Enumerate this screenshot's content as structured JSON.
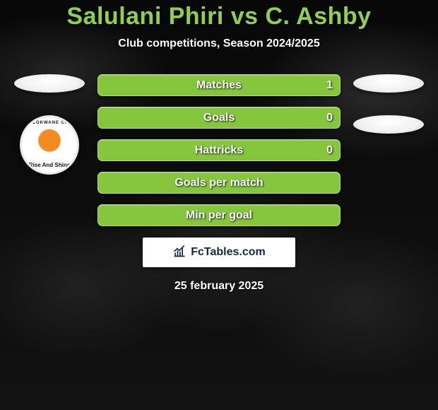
{
  "title": {
    "text": "Salulani Phiri vs C. Ashby",
    "fontsize": 34,
    "color": "#8fd14a"
  },
  "subtitle": {
    "text": "Club competitions, Season 2024/2025",
    "fontsize": 16
  },
  "left": {
    "club_top": "POLOKWANE   CITY",
    "club_motto": "Rise And Shine"
  },
  "bars": {
    "label_fontsize": 16,
    "value_fontsize": 16,
    "border_color": "#b6e06a",
    "rows": [
      {
        "label": "Matches",
        "left": "",
        "right": "1",
        "fill_left": "#85c63e",
        "fill_right": "#85c63e"
      },
      {
        "label": "Goals",
        "left": "",
        "right": "0",
        "fill_left": "#85c63e",
        "fill_right": "#85c63e"
      },
      {
        "label": "Hattricks",
        "left": "",
        "right": "0",
        "fill_left": "#85c63e",
        "fill_right": "#85c63e"
      },
      {
        "label": "Goals per match",
        "left": "",
        "right": "",
        "fill_left": "#85c63e",
        "fill_right": "#85c63e"
      },
      {
        "label": "Min per goal",
        "left": "",
        "right": "",
        "fill_left": "#85c63e",
        "fill_right": "#85c63e"
      }
    ]
  },
  "branding": {
    "text": "FcTables.com",
    "fontsize": 16,
    "color": "#102a3f"
  },
  "date": {
    "text": "25 february 2025",
    "fontsize": 16
  },
  "colors": {
    "background": "#0a0a0a",
    "avatar": "#f4f4f4"
  }
}
